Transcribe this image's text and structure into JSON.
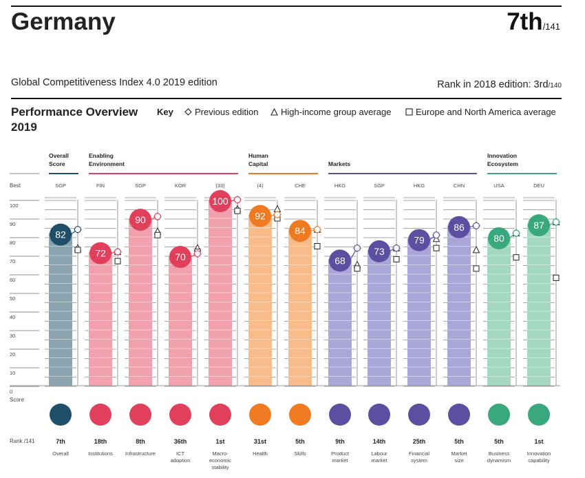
{
  "header": {
    "country": "Germany",
    "rank": "7th",
    "rank_of": "/141",
    "edition": "Global Competitiveness Index 4.0 2019 edition",
    "rank_2018_label": "Rank in 2018 edition: 3rd",
    "rank_2018_of": "/140"
  },
  "performance": {
    "title_line1": "Performance Overview",
    "title_line2": "2019"
  },
  "key": {
    "label": "Key",
    "previous": "Previous edition",
    "high_income": "High-income group average",
    "europe": "Europe and North America average"
  },
  "chart_data": {
    "type": "bar",
    "ylim": [
      0,
      100
    ],
    "y_ticks": [
      "100",
      "90",
      "80",
      "70",
      "60",
      "50",
      "40",
      "30",
      "20",
      "10",
      "0"
    ],
    "best_label": "Best",
    "score_label": "Score",
    "rank_label": "Rank /141",
    "groups": [
      {
        "name": "Overall\nScore",
        "color": "#1f4e68",
        "from": 0,
        "to": 0
      },
      {
        "name": "Enabling\nEnvironment",
        "color": "#e0405c",
        "from": 1,
        "to": 4
      },
      {
        "name": "Human\nCapital",
        "color": "#f07a22",
        "from": 5,
        "to": 6
      },
      {
        "name": "Markets",
        "color": "#5a4fa0",
        "from": 7,
        "to": 10
      },
      {
        "name": "Innovation\nEcosystem",
        "color": "#3aa87e",
        "from": 11,
        "to": 12
      }
    ],
    "pillars": [
      {
        "label": "Overall",
        "best": "SGP",
        "score": 82,
        "previous": 84,
        "high_income": 74,
        "europe": 73,
        "rank": "7th",
        "bar": "#8ba3ae",
        "circle": "#1f4e68"
      },
      {
        "label": "Institutions",
        "best": "FIN",
        "score": 72,
        "previous": 72,
        "high_income": 72,
        "europe": 67,
        "rank": "18th",
        "bar": "#f1a1ad",
        "circle": "#e0405c"
      },
      {
        "label": "Infrastructure",
        "best": "SGP",
        "score": 90,
        "previous": 91,
        "high_income": 83,
        "europe": 81,
        "rank": "8th",
        "bar": "#f1a1ad",
        "circle": "#e0405c"
      },
      {
        "label": "ICT\nadoption",
        "best": "KOR",
        "score": 70,
        "previous": 71,
        "high_income": 74,
        "europe": 72,
        "rank": "36th",
        "bar": "#f1a1ad",
        "circle": "#e0405c"
      },
      {
        "label": "Macro-\neconomic\nstability",
        "best": "(33)",
        "score": 100,
        "previous": 100,
        "high_income": 95,
        "europe": 94,
        "rank": "1st",
        "bar": "#f1a1ad",
        "circle": "#e0405c"
      },
      {
        "label": "Health",
        "best": "(4)",
        "score": 92,
        "previous": 92,
        "high_income": 95,
        "europe": 90,
        "rank": "31st",
        "bar": "#f8bb8a",
        "circle": "#f07a22"
      },
      {
        "label": "Skills",
        "best": "CHE",
        "score": 84,
        "previous": 84,
        "high_income": 84,
        "europe": 75,
        "rank": "5th",
        "bar": "#f8bb8a",
        "circle": "#f07a22"
      },
      {
        "label": "Product\nmarket",
        "best": "HKG",
        "score": 68,
        "previous": 74,
        "high_income": 65,
        "europe": 63,
        "rank": "9th",
        "bar": "#aaa7d8",
        "circle": "#5a4fa0"
      },
      {
        "label": "Labour\nmarket",
        "best": "SGP",
        "score": 73,
        "previous": 74,
        "high_income": 74,
        "europe": 68,
        "rank": "14th",
        "bar": "#aaa7d8",
        "circle": "#5a4fa0"
      },
      {
        "label": "Financial\nsystem",
        "best": "HKG",
        "score": 79,
        "previous": 81,
        "high_income": 79,
        "europe": 74,
        "rank": "25th",
        "bar": "#aaa7d8",
        "circle": "#5a4fa0"
      },
      {
        "label": "Market\nsize",
        "best": "CHN",
        "score": 86,
        "previous": 86,
        "high_income": 73,
        "europe": 63,
        "rank": "5th",
        "bar": "#aaa7d8",
        "circle": "#5a4fa0"
      },
      {
        "label": "Business\ndynamism",
        "best": "USA",
        "score": 80,
        "previous": 82,
        "high_income": 82,
        "europe": 69,
        "rank": "5th",
        "bar": "#a5d8c2",
        "circle": "#3aa87e"
      },
      {
        "label": "Innovation\ncapability",
        "best": "DEU",
        "score": 87,
        "previous": 88,
        "high_income": 88,
        "europe": 58,
        "rank": "1st",
        "bar": "#a5d8c2",
        "circle": "#3aa87e"
      }
    ]
  }
}
